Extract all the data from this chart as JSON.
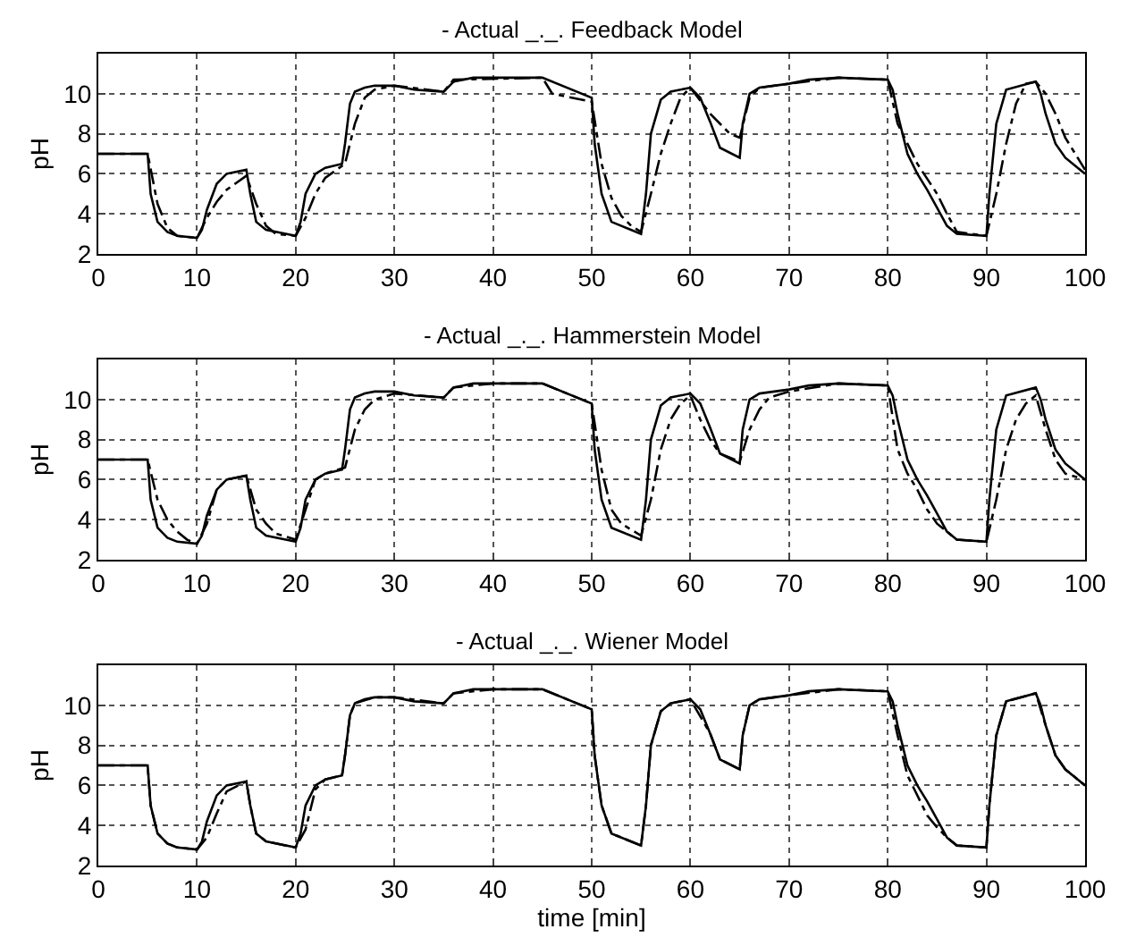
{
  "chart_data": [
    {
      "type": "line",
      "title": "- Actual _._. Feedback Model",
      "ylabel": "pH",
      "xlim": [
        0,
        100
      ],
      "xticks": [
        0,
        10,
        20,
        30,
        40,
        50,
        60,
        70,
        80,
        90,
        100
      ],
      "ylim": [
        2,
        12
      ],
      "yticks": [
        2,
        4,
        6,
        8,
        10
      ],
      "grid": true,
      "series": [
        {
          "color": "#000000",
          "line_style": "solid",
          "x": [
            0,
            5,
            5.3,
            6,
            7,
            8,
            10,
            10.5,
            11,
            12,
            13,
            15,
            15.4,
            16,
            17,
            20,
            20.5,
            21,
            22,
            23,
            24.7,
            25,
            25.5,
            26,
            27,
            28,
            30,
            32,
            35,
            36,
            38,
            40,
            45,
            50,
            50.3,
            51,
            52,
            55,
            55.5,
            56,
            57,
            58,
            60,
            61,
            62,
            63,
            65,
            65.3,
            66,
            67,
            70,
            72,
            75,
            80,
            80.5,
            81,
            82,
            83,
            84,
            85,
            86,
            87,
            90,
            90.3,
            91,
            92,
            95,
            95.5,
            96,
            97,
            98,
            100
          ],
          "values": [
            7,
            7,
            5,
            3.6,
            3.1,
            2.9,
            2.8,
            3.2,
            4.2,
            5.5,
            6.0,
            6.2,
            5,
            3.6,
            3.2,
            2.9,
            3.6,
            5,
            6,
            6.3,
            6.5,
            7.5,
            9.5,
            10.1,
            10.3,
            10.4,
            10.4,
            10.2,
            10.1,
            10.6,
            10.8,
            10.8,
            10.8,
            9.8,
            7.5,
            5,
            3.6,
            3,
            5,
            8,
            9.7,
            10.1,
            10.3,
            9.8,
            8.6,
            7.3,
            6.8,
            8.5,
            10,
            10.3,
            10.5,
            10.7,
            10.8,
            10.7,
            10.2,
            9.0,
            7.0,
            6.0,
            5.2,
            4.3,
            3.4,
            3.0,
            2.9,
            5,
            8.5,
            10.2,
            10.6,
            10,
            9,
            7.5,
            6.8,
            6.0
          ]
        },
        {
          "color": "#000000",
          "line_style": "dashed",
          "x": [
            0,
            5,
            6,
            7,
            8,
            10,
            11,
            12,
            13,
            15,
            16,
            17,
            18,
            20,
            21,
            22,
            23,
            25,
            26,
            27,
            28,
            30,
            35,
            36,
            45,
            46,
            50,
            51,
            52,
            53,
            54,
            55,
            56,
            57,
            58,
            59,
            60,
            62,
            64,
            65,
            66,
            67,
            70,
            75,
            80,
            81,
            83,
            85,
            86,
            87,
            90,
            91,
            92,
            93,
            94,
            95,
            96,
            97,
            98,
            100
          ],
          "values": [
            7,
            7,
            4.5,
            3.3,
            2.9,
            2.8,
            3.8,
            4.6,
            5.2,
            5.9,
            4.5,
            3.4,
            3.0,
            2.9,
            3.8,
            5.0,
            5.8,
            6.5,
            8.5,
            9.8,
            10.2,
            10.4,
            10.1,
            10.7,
            10.8,
            10.0,
            9.6,
            6.5,
            4.8,
            3.9,
            3.4,
            3.1,
            5.0,
            7.0,
            8.5,
            9.8,
            10.3,
            9,
            8.0,
            7.8,
            9.8,
            10.3,
            10.5,
            10.8,
            10.7,
            8.5,
            6.5,
            5.0,
            4.0,
            3.1,
            2.9,
            5.0,
            7.5,
            9.5,
            10.5,
            10.6,
            10,
            9,
            7.8,
            6.2
          ]
        }
      ]
    },
    {
      "type": "line",
      "title": "- Actual _._. Hammerstein Model",
      "ylabel": "pH",
      "xlim": [
        0,
        100
      ],
      "xticks": [
        0,
        10,
        20,
        30,
        40,
        50,
        60,
        70,
        80,
        90,
        100
      ],
      "ylim": [
        2,
        12
      ],
      "yticks": [
        2,
        4,
        6,
        8,
        10
      ],
      "grid": true,
      "series": [
        {
          "color": "#000000",
          "line_style": "solid",
          "x": [
            0,
            5,
            5.3,
            6,
            7,
            8,
            10,
            10.5,
            11,
            12,
            13,
            15,
            15.4,
            16,
            17,
            20,
            20.5,
            21,
            22,
            23,
            24.7,
            25,
            25.5,
            26,
            27,
            28,
            30,
            32,
            35,
            36,
            38,
            40,
            45,
            50,
            50.3,
            51,
            52,
            55,
            55.5,
            56,
            57,
            58,
            60,
            61,
            62,
            63,
            65,
            65.3,
            66,
            67,
            70,
            72,
            75,
            80,
            80.5,
            81,
            82,
            83,
            84,
            85,
            86,
            87,
            90,
            90.3,
            91,
            92,
            95,
            95.5,
            96,
            97,
            98,
            100
          ],
          "values": [
            7,
            7,
            5,
            3.6,
            3.1,
            2.9,
            2.8,
            3.2,
            4.2,
            5.5,
            6.0,
            6.2,
            5,
            3.6,
            3.2,
            2.9,
            3.6,
            5,
            6,
            6.3,
            6.5,
            7.5,
            9.5,
            10.1,
            10.3,
            10.4,
            10.4,
            10.2,
            10.1,
            10.6,
            10.8,
            10.8,
            10.8,
            9.8,
            7.5,
            5,
            3.6,
            3,
            5,
            8,
            9.7,
            10.1,
            10.3,
            9.8,
            8.6,
            7.3,
            6.8,
            8.5,
            10,
            10.3,
            10.5,
            10.7,
            10.8,
            10.7,
            10.2,
            9.0,
            7.0,
            6.0,
            5.2,
            4.3,
            3.4,
            3.0,
            2.9,
            5,
            8.5,
            10.2,
            10.6,
            10,
            9,
            7.5,
            6.8,
            6.0
          ]
        },
        {
          "color": "#000000",
          "line_style": "dashed",
          "x": [
            0,
            5,
            6,
            7,
            8,
            9,
            10,
            11,
            12,
            13,
            15,
            16,
            17,
            18,
            20,
            21,
            22,
            23,
            25,
            26,
            27,
            28,
            30,
            35,
            36,
            40,
            45,
            50,
            51,
            52,
            53,
            55,
            56,
            57,
            58,
            59,
            60,
            61,
            62,
            63,
            65,
            66,
            67,
            68,
            70,
            75,
            80,
            81,
            82,
            83,
            84,
            85,
            87,
            90,
            91,
            92,
            93,
            94,
            95,
            96,
            97,
            98,
            100
          ],
          "values": [
            7,
            7,
            5,
            4.0,
            3.4,
            3.0,
            2.8,
            3.8,
            5.5,
            6.0,
            6.2,
            4.5,
            3.8,
            3.3,
            3.0,
            4.5,
            6.0,
            6.3,
            6.6,
            8.5,
            9.5,
            10.0,
            10.3,
            10.1,
            10.6,
            10.8,
            10.8,
            9.8,
            6.5,
            4.5,
            3.8,
            3.2,
            5,
            7.5,
            9,
            9.8,
            10.2,
            9,
            8,
            7.3,
            6.9,
            8.5,
            9.5,
            10.1,
            10.4,
            10.8,
            10.7,
            7.5,
            6.3,
            5.5,
            4.5,
            3.8,
            3.0,
            2.9,
            5.0,
            7.5,
            9.0,
            9.8,
            10.2,
            8.5,
            7.0,
            6.3,
            6.0
          ]
        }
      ]
    },
    {
      "type": "line",
      "title": "- Actual _._. Wiener Model",
      "xlabel": "time [min]",
      "ylabel": "pH",
      "xlim": [
        0,
        100
      ],
      "xticks": [
        0,
        10,
        20,
        30,
        40,
        50,
        60,
        70,
        80,
        90,
        100
      ],
      "ylim": [
        2,
        12
      ],
      "yticks": [
        2,
        4,
        6,
        8,
        10
      ],
      "grid": true,
      "series": [
        {
          "color": "#000000",
          "line_style": "solid",
          "x": [
            0,
            5,
            5.3,
            6,
            7,
            8,
            10,
            10.5,
            11,
            12,
            13,
            15,
            15.4,
            16,
            17,
            20,
            20.5,
            21,
            22,
            23,
            24.7,
            25,
            25.5,
            26,
            27,
            28,
            30,
            32,
            35,
            36,
            38,
            40,
            45,
            50,
            50.3,
            51,
            52,
            55,
            55.5,
            56,
            57,
            58,
            60,
            61,
            62,
            63,
            65,
            65.3,
            66,
            67,
            70,
            72,
            75,
            80,
            80.5,
            81,
            82,
            83,
            84,
            85,
            86,
            87,
            90,
            90.3,
            91,
            92,
            95,
            95.5,
            96,
            97,
            98,
            100
          ],
          "values": [
            7,
            7,
            5,
            3.6,
            3.1,
            2.9,
            2.8,
            3.2,
            4.2,
            5.5,
            6.0,
            6.2,
            5,
            3.6,
            3.2,
            2.9,
            3.6,
            5,
            6,
            6.3,
            6.5,
            7.5,
            9.5,
            10.1,
            10.3,
            10.4,
            10.4,
            10.2,
            10.1,
            10.6,
            10.8,
            10.8,
            10.8,
            9.8,
            7.5,
            5,
            3.6,
            3,
            5,
            8,
            9.7,
            10.1,
            10.3,
            9.8,
            8.6,
            7.3,
            6.8,
            8.5,
            10,
            10.3,
            10.5,
            10.7,
            10.8,
            10.7,
            10.2,
            9.0,
            7.0,
            6.0,
            5.2,
            4.3,
            3.4,
            3.0,
            2.9,
            5,
            8.5,
            10.2,
            10.6,
            10,
            9,
            7.5,
            6.8,
            6.0
          ]
        },
        {
          "color": "#000000",
          "line_style": "dashed",
          "x": [
            0,
            5,
            5.3,
            6,
            7,
            8,
            10,
            11,
            12,
            13,
            15,
            15.4,
            16,
            17,
            20,
            21,
            22,
            23,
            24.7,
            25,
            25.5,
            26,
            28,
            30,
            35,
            36,
            40,
            45,
            50,
            50.3,
            51,
            52,
            55,
            55.5,
            56,
            57,
            58,
            60,
            62,
            63,
            65,
            65.3,
            66,
            67,
            70,
            75,
            80,
            81,
            82,
            84,
            85,
            86,
            87,
            90,
            90.3,
            91,
            92,
            95,
            96,
            97,
            98,
            100
          ],
          "values": [
            7,
            7,
            5,
            3.6,
            3.1,
            2.9,
            2.8,
            3.4,
            4.6,
            5.7,
            6.2,
            5,
            3.6,
            3.2,
            2.9,
            3.8,
            5.8,
            6.3,
            6.5,
            7.5,
            9.5,
            10.1,
            10.4,
            10.4,
            10.1,
            10.6,
            10.8,
            10.8,
            9.8,
            7.5,
            5,
            3.6,
            3,
            5,
            8,
            9.7,
            10.1,
            10.3,
            8.6,
            7.3,
            6.8,
            8.5,
            10,
            10.3,
            10.5,
            10.8,
            10.7,
            8.5,
            6.5,
            4.5,
            3.9,
            3.4,
            3.0,
            2.9,
            5,
            8.5,
            10.2,
            10.6,
            9,
            7.5,
            6.8,
            6.0
          ]
        }
      ]
    }
  ]
}
